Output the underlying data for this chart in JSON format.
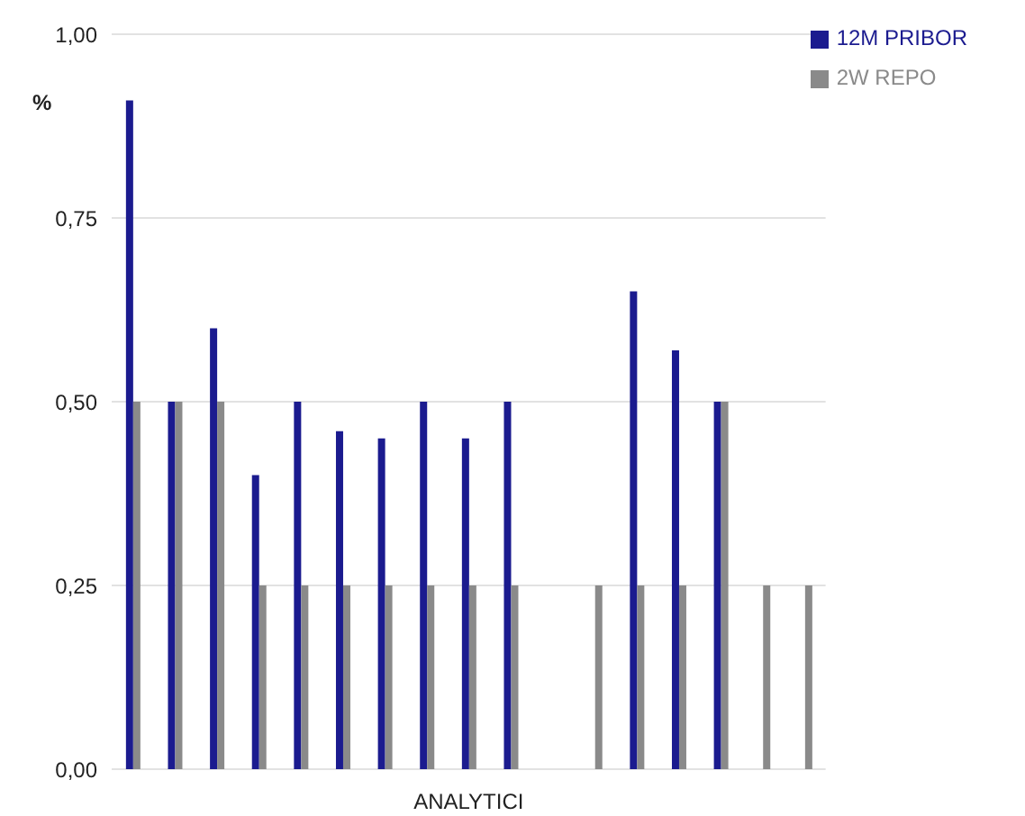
{
  "chart_data": {
    "type": "bar",
    "xlabel": "ANALYTICI",
    "ylabel": "%",
    "categories": [
      null,
      null,
      null,
      null,
      null,
      null,
      null,
      null,
      null,
      null,
      null,
      null,
      null,
      null,
      null,
      null,
      null
    ],
    "series": [
      {
        "name": "12M PRIBOR",
        "color": "#1b1b8f",
        "values": [
          0.91,
          0.5,
          0.6,
          0.4,
          0.5,
          0.46,
          0.45,
          0.5,
          0.45,
          0.5,
          null,
          null,
          0.65,
          0.57,
          0.5,
          null,
          null
        ]
      },
      {
        "name": "2W REPO",
        "color": "#8a8a8a",
        "values": [
          0.5,
          0.5,
          0.5,
          0.25,
          0.25,
          0.25,
          0.25,
          0.25,
          0.25,
          0.25,
          null,
          0.25,
          0.25,
          0.25,
          0.5,
          0.25,
          0.25
        ]
      }
    ],
    "ylim": [
      0,
      1
    ],
    "yticks": [
      {
        "value": 0,
        "label": "0,00"
      },
      {
        "value": 0.25,
        "label": "0,25"
      },
      {
        "value": 0.5,
        "label": "0,50"
      },
      {
        "value": 0.75,
        "label": "0,75"
      },
      {
        "value": 1,
        "label": "1,00"
      }
    ],
    "grid": "y",
    "legend": "top right"
  }
}
